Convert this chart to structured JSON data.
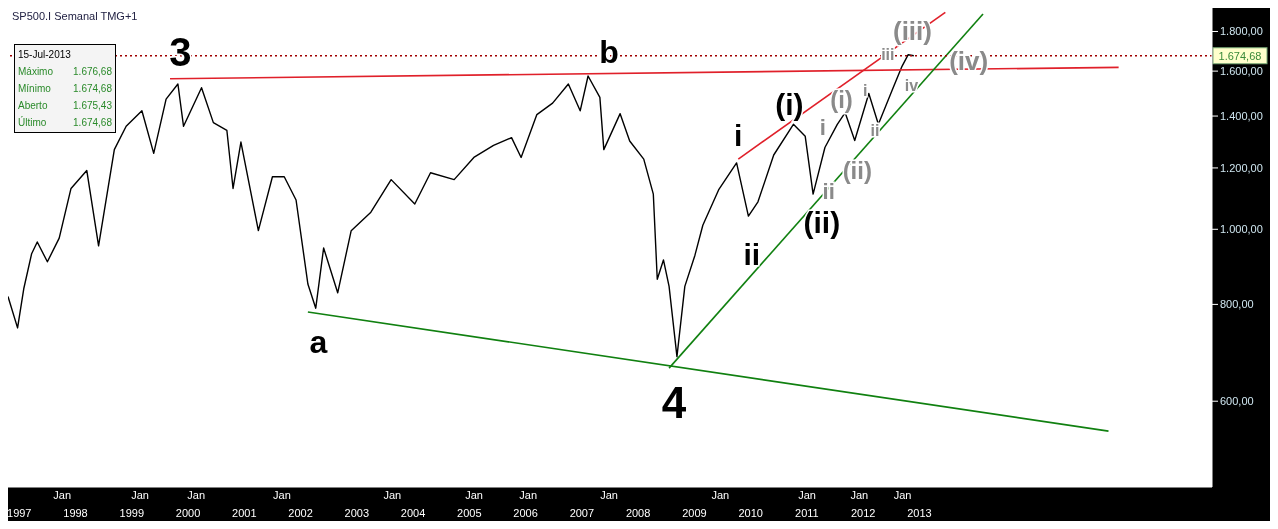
{
  "chart_data": {
    "type": "line",
    "title": "SP500.I Semanal TMG+1",
    "xlim": [
      1997.3,
      2018.7
    ],
    "xticks": [
      {
        "value": 1997.5,
        "label": "1997"
      },
      {
        "value": 1998.5,
        "label": "1998"
      },
      {
        "value": 1999.5,
        "label": "1999"
      },
      {
        "value": 2000.5,
        "label": "2000"
      },
      {
        "value": 2001.5,
        "label": "2001"
      },
      {
        "value": 2002.5,
        "label": "2002"
      },
      {
        "value": 2003.5,
        "label": "2003"
      },
      {
        "value": 2004.5,
        "label": "2004"
      },
      {
        "value": 2005.5,
        "label": "2005"
      },
      {
        "value": 2006.5,
        "label": "2006"
      },
      {
        "value": 2007.5,
        "label": "2007"
      },
      {
        "value": 2008.5,
        "label": "2008"
      },
      {
        "value": 2009.5,
        "label": "2009"
      },
      {
        "value": 2010.5,
        "label": "2010"
      },
      {
        "value": 2011.5,
        "label": "2011"
      },
      {
        "value": 2012.5,
        "label": "2012"
      },
      {
        "value": 2013.5,
        "label": "2013"
      }
    ],
    "ylim": [
      465,
      1930
    ],
    "yticks": [
      {
        "value": 600,
        "label": "600,00"
      },
      {
        "value": 800,
        "label": "800,00"
      },
      {
        "value": 1000,
        "label": "1.000,00"
      },
      {
        "value": 1200,
        "label": "1.200,00"
      },
      {
        "value": 1400,
        "label": "1.400,00"
      },
      {
        "value": 1600,
        "label": "1.600,00"
      },
      {
        "value": 1800,
        "label": "1.800,00"
      }
    ],
    "log": "y",
    "grid": false,
    "legend": false,
    "marker": "none",
    "line_style": "solid",
    "series": [
      {
        "color": "#000000",
        "x": [
          1997.3,
          1997.47,
          1997.58,
          1997.72,
          1997.82,
          1998.0,
          1998.21,
          1998.42,
          1998.7,
          1998.91,
          1999.19,
          1999.4,
          1999.68,
          1999.89,
          2000.11,
          2000.32,
          2000.42,
          2000.74,
          2000.95,
          2001.19,
          2001.3,
          2001.44,
          2001.75,
          2002.0,
          2002.21,
          2002.42,
          2002.63,
          2002.77,
          2002.91,
          2003.16,
          2003.4,
          2003.75,
          2004.11,
          2004.53,
          2004.81,
          2005.23,
          2005.58,
          2005.93,
          2006.25,
          2006.42,
          2006.7,
          2006.98,
          2007.26,
          2007.47,
          2007.61,
          2007.82,
          2007.89,
          2008.18,
          2008.35,
          2008.6,
          2008.77,
          2008.84,
          2008.95,
          2009.05,
          2009.19,
          2009.33,
          2009.51,
          2009.65,
          2009.93,
          2010.25,
          2010.46,
          2010.63,
          2010.91,
          2011.26,
          2011.47,
          2011.61,
          2011.82,
          2012.04,
          2012.18,
          2012.35,
          2012.6,
          2012.77,
          2013.02,
          2013.19,
          2013.3,
          2013.4
        ],
        "values": [
          819,
          746,
          838,
          930,
          963,
          908,
          974,
          1129,
          1191,
          952,
          1267,
          1358,
          1422,
          1253,
          1472,
          1540,
          1358,
          1523,
          1373,
          1342,
          1129,
          1296,
          996,
          1169,
          1169,
          1091,
          850,
          791,
          946,
          828,
          996,
          1052,
          1159,
          1078,
          1183,
          1159,
          1238,
          1283,
          1313,
          1238,
          1406,
          1455,
          1540,
          1422,
          1577,
          1480,
          1267,
          1410,
          1300,
          1232,
          1110,
          862,
          913,
          844,
          685,
          844,
          926,
          1012,
          1124,
          1218,
          1040,
          1085,
          1247,
          1366,
          1318,
          1110,
          1275,
          1366,
          1414,
          1302,
          1497,
          1366,
          1515,
          1623,
          1680,
          1675
        ]
      },
      {
        "color": "#e0202a",
        "x": [
          2000.18,
          2017.04
        ],
        "values": [
          1564,
          1618
        ]
      },
      {
        "color": "#e0202a",
        "x": [
          2010.28,
          2013.96
        ],
        "values": [
          1232,
          1905
        ]
      },
      {
        "color": "#108010",
        "x": [
          2002.63,
          2016.86
        ],
        "values": [
          782,
          549
        ]
      },
      {
        "color": "#108010",
        "x": [
          2009.05,
          2014.63
        ],
        "values": [
          662,
          1896
        ]
      }
    ],
    "ref_lines": [
      {
        "axis": "y",
        "value": 1674.68,
        "label": "1.674,68",
        "color": "#a00000",
        "line_style": "dotted"
      }
    ],
    "annotations": [
      "15-Jul-2013",
      "Máximo\t1.676,68",
      "Mínimo\t1.674,68",
      "Aberto\t1.675,43",
      "Último\t1.674,68",
      "3",
      "a",
      "b",
      "4",
      "i",
      "ii",
      "(i)",
      "(ii)",
      "(iii)",
      "iii",
      "(iv)",
      "iv",
      "(i)",
      "i",
      "ii",
      "i",
      "(ii)",
      "ii",
      "Jan",
      "Jan",
      "Jan",
      "Jan",
      "Jan",
      "Jan",
      "Jan",
      "Jan",
      "Jan",
      "Jan",
      "Jan",
      "Jan"
    ]
  }
}
